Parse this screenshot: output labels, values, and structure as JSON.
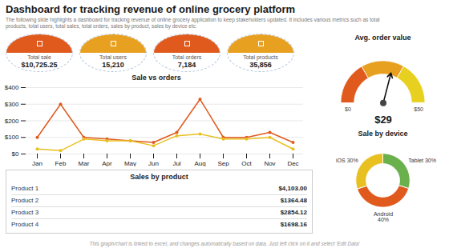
{
  "title": "Dashboard for tracking revenue of online grocery platform",
  "subtitle": "The following slide highlights a dashboard for tracking revenue of online grocery application to keep stakeholders updated. It includes various metrics such as total products, total users, total sales, total orders, sales by product, sales by device etc.",
  "footer": "This graph/chart is linked to excel, and changes automatically based on data. Just left click on it and select 'Edit Data'",
  "chart_data": [
    {
      "type": "kpi",
      "categories": [
        "Total sale",
        "Total users",
        "Total orders",
        "Total products"
      ],
      "values": [
        10725.25,
        15210,
        7184,
        35856
      ],
      "value_labels": [
        "$10,725.25",
        "15,210",
        "7,184",
        "35,856"
      ],
      "colors": [
        "#e05a1e",
        "#e8a020",
        "#e05a1e",
        "#e8a020"
      ]
    },
    {
      "type": "line",
      "title": "Sale vs orders",
      "categories": [
        "Jan",
        "Feb",
        "Mar",
        "Apr",
        "May",
        "Jun",
        "Jul",
        "Aug",
        "Sep",
        "Oct",
        "Nov",
        "Dec"
      ],
      "series": [
        {
          "color": "#e05a1e",
          "values": [
            100,
            300,
            100,
            90,
            80,
            70,
            130,
            330,
            100,
            100,
            130,
            70
          ]
        },
        {
          "color": "#e8c020",
          "values": [
            30,
            20,
            90,
            80,
            80,
            50,
            110,
            120,
            90,
            90,
            100,
            30
          ]
        }
      ],
      "ylim": [
        0,
        400
      ],
      "yticks": [
        {
          "value": 0,
          "label": "$0"
        },
        {
          "value": 100,
          "label": "$100"
        },
        {
          "value": 200,
          "label": "$200"
        },
        {
          "value": 300,
          "label": "$300"
        },
        {
          "value": 400,
          "label": "$400"
        }
      ],
      "grid": true,
      "marker": "circle"
    },
    {
      "type": "table",
      "title": "Sales by product",
      "categories": [
        "Product 1",
        "Product 2",
        "Product 3",
        "Product 4"
      ],
      "values": [
        4103.0,
        1364.48,
        2854.12,
        1698.16
      ],
      "value_labels": [
        "$4,103.00",
        "$1364.48",
        "$2854.12",
        "$1698.16"
      ]
    },
    {
      "type": "gauge",
      "title": "Avg. order value",
      "values": [
        29
      ],
      "value_labels": [
        "$29"
      ],
      "xlim": [
        0,
        50
      ],
      "xticks": [
        {
          "value": 0,
          "label": "$0"
        },
        {
          "value": 50,
          "label": "$50"
        }
      ],
      "colors": [
        "#e05a1e",
        "#e8a020",
        "#e8d020"
      ]
    },
    {
      "type": "pie",
      "title": "Sale by device",
      "categories": [
        "Tablet 30%",
        "Android\n40%",
        "iOS 30%"
      ],
      "values": [
        30,
        40,
        30
      ],
      "colors": [
        "#6ab04c",
        "#e05a1e",
        "#e8c020"
      ]
    }
  ]
}
